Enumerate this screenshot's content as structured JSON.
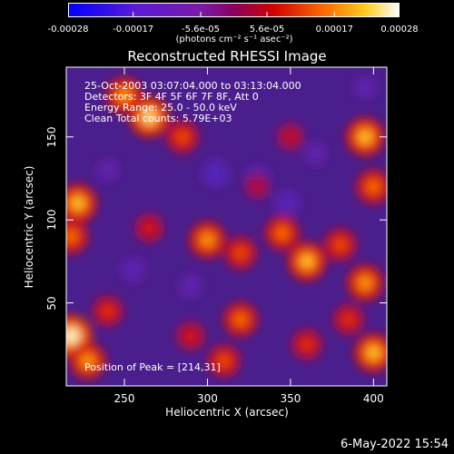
{
  "chart_data": {
    "type": "heatmap",
    "title": "Reconstructed RHESSI Image",
    "xlabel": "Heliocentric X (arcsec)",
    "ylabel": "Heliocentric Y (arcsec)",
    "xlim": [
      215,
      408
    ],
    "ylim": [
      0,
      192
    ],
    "x_ticks": [
      250,
      300,
      350,
      400
    ],
    "y_ticks": [
      50,
      100,
      150
    ],
    "colorbar": {
      "min": -0.00028,
      "max": 0.00028,
      "tick_values": [
        -0.00028,
        -0.00017,
        -5.6e-05,
        5.6e-05,
        0.00017,
        0.00028
      ],
      "tick_labels": [
        "-0.00028",
        "-0.00017",
        "-5.6e-05",
        "5.6e-05",
        "0.00017",
        "0.00028"
      ],
      "unit_label": "(photons cm⁻² s⁻¹ asec⁻²)"
    },
    "annotations": [
      "25-Oct-2003 03:07:04.000 to 03:13:04.000",
      "Detectors: 3F 4F 5F 6F 7F 8F, Att 0",
      "Energy Range: 25.0 - 50.0 keV",
      "Clean     Total counts: 5.79E+03"
    ],
    "peak_label": "Position of Peak = [214,31]",
    "peak_position": [
      214,
      31
    ],
    "hot_spots": [
      {
        "x": 265,
        "y": 162,
        "value": 0.00026
      },
      {
        "x": 250,
        "y": 175,
        "value": 0.00022
      },
      {
        "x": 285,
        "y": 150,
        "value": 0.00018
      },
      {
        "x": 222,
        "y": 110,
        "value": 0.00024
      },
      {
        "x": 218,
        "y": 90,
        "value": 0.0002
      },
      {
        "x": 218,
        "y": 30,
        "value": 0.00028
      },
      {
        "x": 228,
        "y": 15,
        "value": 0.00022
      },
      {
        "x": 240,
        "y": 45,
        "value": 0.00016
      },
      {
        "x": 300,
        "y": 88,
        "value": 0.00022
      },
      {
        "x": 320,
        "y": 80,
        "value": 0.00018
      },
      {
        "x": 345,
        "y": 92,
        "value": 0.0002
      },
      {
        "x": 360,
        "y": 75,
        "value": 0.00024
      },
      {
        "x": 380,
        "y": 85,
        "value": 0.00018
      },
      {
        "x": 395,
        "y": 62,
        "value": 0.00022
      },
      {
        "x": 385,
        "y": 40,
        "value": 0.00016
      },
      {
        "x": 400,
        "y": 20,
        "value": 0.00024
      },
      {
        "x": 320,
        "y": 40,
        "value": 0.0002
      },
      {
        "x": 310,
        "y": 15,
        "value": 0.00018
      },
      {
        "x": 290,
        "y": 30,
        "value": 0.00014
      },
      {
        "x": 360,
        "y": 25,
        "value": 0.00016
      },
      {
        "x": 395,
        "y": 150,
        "value": 0.00024
      },
      {
        "x": 400,
        "y": 120,
        "value": 0.0002
      },
      {
        "x": 350,
        "y": 150,
        "value": 0.00012
      },
      {
        "x": 265,
        "y": 95,
        "value": 0.00014
      },
      {
        "x": 330,
        "y": 120,
        "value": 0.0001
      }
    ],
    "cold_spots": [
      {
        "x": 305,
        "y": 128,
        "value": -0.00012
      },
      {
        "x": 330,
        "y": 125,
        "value": -0.0001
      },
      {
        "x": 348,
        "y": 110,
        "value": -0.0001
      },
      {
        "x": 255,
        "y": 70,
        "value": -9e-05
      },
      {
        "x": 395,
        "y": 180,
        "value": -8e-05
      },
      {
        "x": 290,
        "y": 60,
        "value": -8e-05
      },
      {
        "x": 365,
        "y": 140,
        "value": -7e-05
      },
      {
        "x": 240,
        "y": 130,
        "value": -7e-05
      }
    ]
  },
  "footer": {
    "date": "6-May-2022 15:54"
  }
}
